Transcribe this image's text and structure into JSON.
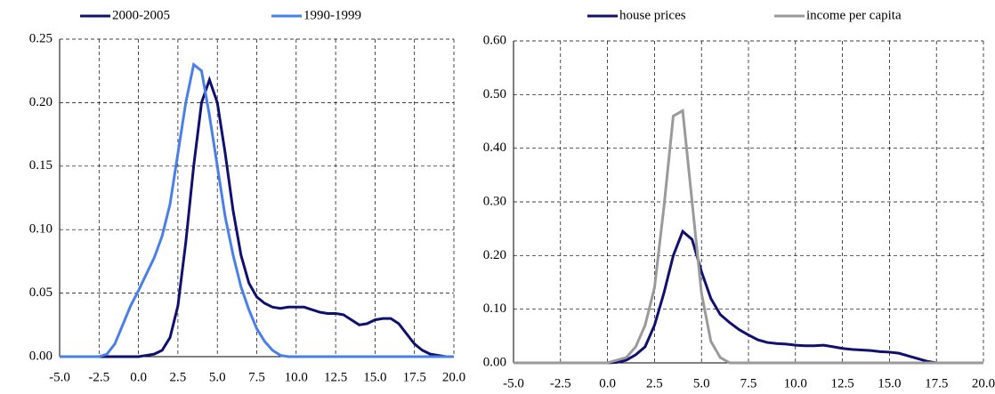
{
  "chart_data": [
    {
      "type": "line",
      "grid": true,
      "x": [
        -5,
        -4.5,
        -4,
        -3.5,
        -3,
        -2.5,
        -2,
        -1.5,
        -1,
        -0.5,
        0,
        0.5,
        1,
        1.5,
        2,
        2.5,
        3,
        3.5,
        4,
        4.5,
        5,
        5.5,
        6,
        6.5,
        7,
        7.5,
        8,
        8.5,
        9,
        9.5,
        10,
        10.5,
        11,
        11.5,
        12,
        12.5,
        13,
        13.5,
        14,
        14.5,
        15,
        15.5,
        16,
        16.5,
        17,
        17.5,
        18,
        18.5,
        19,
        19.5,
        20
      ],
      "series": [
        {
          "name": "2000-2005",
          "color": "#10106e",
          "values": [
            0,
            0,
            0,
            0,
            0,
            0,
            0,
            0,
            0,
            0,
            0,
            0.001,
            0.002,
            0.005,
            0.015,
            0.04,
            0.09,
            0.15,
            0.2,
            0.218,
            0.2,
            0.16,
            0.115,
            0.08,
            0.058,
            0.047,
            0.042,
            0.039,
            0.038,
            0.039,
            0.039,
            0.039,
            0.037,
            0.035,
            0.034,
            0.034,
            0.033,
            0.029,
            0.025,
            0.026,
            0.029,
            0.03,
            0.03,
            0.026,
            0.018,
            0.01,
            0.005,
            0.002,
            0.001,
            0,
            0
          ]
        },
        {
          "name": "1990-1999",
          "color": "#4a7fea",
          "values": [
            0,
            0,
            0,
            0,
            0,
            0,
            0.002,
            0.01,
            0.025,
            0.04,
            0.052,
            0.065,
            0.078,
            0.095,
            0.12,
            0.16,
            0.2,
            0.23,
            0.225,
            0.19,
            0.15,
            0.11,
            0.08,
            0.055,
            0.037,
            0.022,
            0.012,
            0.005,
            0.001,
            0,
            0,
            0,
            0,
            0,
            0,
            0,
            0,
            0,
            0,
            0,
            0,
            0,
            0,
            0,
            0,
            0,
            0,
            0,
            0,
            0,
            0
          ]
        }
      ],
      "xlim": [
        -5,
        20
      ],
      "xticks": [
        {
          "value": -5,
          "label": "-5.0"
        },
        {
          "value": -2.5,
          "label": "-2.5"
        },
        {
          "value": 0,
          "label": "0.0"
        },
        {
          "value": 2.5,
          "label": "2.5"
        },
        {
          "value": 5,
          "label": "5.0"
        },
        {
          "value": 7.5,
          "label": "7.5"
        },
        {
          "value": 10,
          "label": "10.0"
        },
        {
          "value": 12.5,
          "label": "12.5"
        },
        {
          "value": 15,
          "label": "15.0"
        },
        {
          "value": 17.5,
          "label": "17.5"
        },
        {
          "value": 20,
          "label": "20.0"
        }
      ],
      "ylim": [
        0,
        0.25
      ],
      "yticks": [
        {
          "value": 0,
          "label": "0.00"
        },
        {
          "value": 0.05,
          "label": "0.05"
        },
        {
          "value": 0.1,
          "label": "0.10"
        },
        {
          "value": 0.15,
          "label": "0.15"
        },
        {
          "value": 0.2,
          "label": "0.20"
        },
        {
          "value": 0.25,
          "label": "0.25"
        }
      ]
    },
    {
      "type": "line",
      "grid": true,
      "x": [
        -5,
        -4.5,
        -4,
        -3.5,
        -3,
        -2.5,
        -2,
        -1.5,
        -1,
        -0.5,
        0,
        0.5,
        1,
        1.5,
        2,
        2.5,
        3,
        3.5,
        4,
        4.5,
        5,
        5.5,
        6,
        6.5,
        7,
        7.5,
        8,
        8.5,
        9,
        9.5,
        10,
        10.5,
        11,
        11.5,
        12,
        12.5,
        13,
        13.5,
        14,
        14.5,
        15,
        15.5,
        16,
        16.5,
        17,
        17.5,
        18,
        18.5,
        19,
        19.5,
        20
      ],
      "series": [
        {
          "name": "house prices",
          "color": "#10106e",
          "values": [
            0,
            0,
            0,
            0,
            0,
            0,
            0,
            0,
            0,
            0,
            0,
            0.001,
            0.005,
            0.015,
            0.03,
            0.07,
            0.13,
            0.2,
            0.245,
            0.23,
            0.17,
            0.12,
            0.09,
            0.075,
            0.062,
            0.052,
            0.043,
            0.038,
            0.036,
            0.035,
            0.033,
            0.032,
            0.032,
            0.033,
            0.03,
            0.027,
            0.025,
            0.024,
            0.023,
            0.021,
            0.02,
            0.018,
            0.013,
            0.008,
            0.003,
            0,
            0,
            0,
            0,
            0,
            0
          ]
        },
        {
          "name": "income per capita",
          "color": "#9a9a9a",
          "values": [
            0,
            0,
            0,
            0,
            0,
            0,
            0,
            0,
            0,
            0,
            0,
            0.005,
            0.01,
            0.03,
            0.07,
            0.14,
            0.29,
            0.46,
            0.47,
            0.3,
            0.13,
            0.04,
            0.01,
            0,
            0,
            0,
            0,
            0,
            0,
            0,
            0,
            0,
            0,
            0,
            0,
            0,
            0,
            0,
            0,
            0,
            0,
            0,
            0,
            0,
            0,
            0,
            0,
            0,
            0,
            0,
            0
          ]
        }
      ],
      "xlim": [
        -5,
        20
      ],
      "xticks": [
        {
          "value": -5,
          "label": "-5.0"
        },
        {
          "value": -2.5,
          "label": "-2.5"
        },
        {
          "value": 0,
          "label": "0.0"
        },
        {
          "value": 2.5,
          "label": "2.5"
        },
        {
          "value": 5,
          "label": "5.0"
        },
        {
          "value": 7.5,
          "label": "7.5"
        },
        {
          "value": 10,
          "label": "10.0"
        },
        {
          "value": 12.5,
          "label": "12.5"
        },
        {
          "value": 15,
          "label": "15.0"
        },
        {
          "value": 17.5,
          "label": "17.5"
        },
        {
          "value": 20,
          "label": "20.0"
        }
      ],
      "ylim": [
        0,
        0.6
      ],
      "yticks": [
        {
          "value": 0,
          "label": "0.00"
        },
        {
          "value": 0.1,
          "label": "0.10"
        },
        {
          "value": 0.2,
          "label": "0.20"
        },
        {
          "value": 0.3,
          "label": "0.30"
        },
        {
          "value": 0.4,
          "label": "0.40"
        },
        {
          "value": 0.5,
          "label": "0.50"
        },
        {
          "value": 0.6,
          "label": "0.60"
        }
      ]
    }
  ]
}
